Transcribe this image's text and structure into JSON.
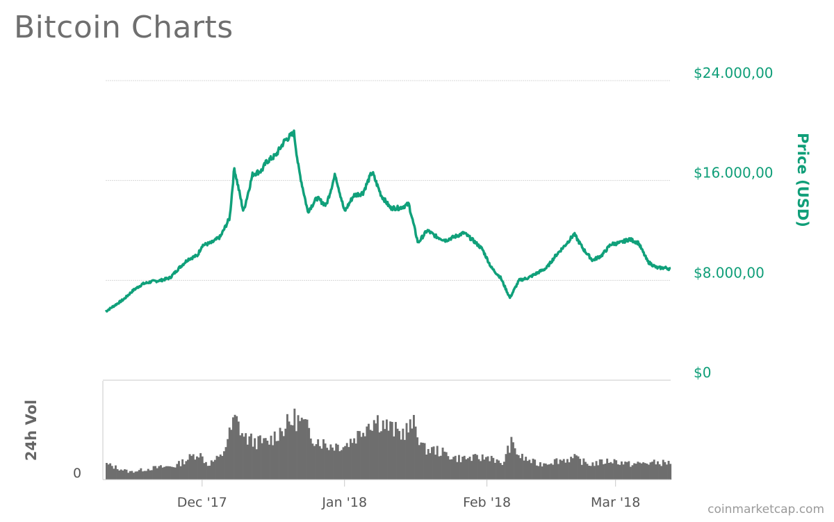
{
  "page": {
    "title": "Bitcoin Charts",
    "credit": "coinmarketcap.com"
  },
  "colors": {
    "price_line": "#10a07a",
    "price_axis": "#0f9e78",
    "volume_fill": "#6e6e6e",
    "grid": "#d8d8d8",
    "axis_text": "#555555"
  },
  "chart_data": {
    "type": "line",
    "title": "Bitcoin Charts",
    "price_axis": {
      "label": "Price (USD)",
      "ticks": [
        0,
        8000,
        16000,
        24000
      ],
      "tick_labels": [
        "$0",
        "$8.000,00",
        "$16.000,00",
        "$24.000,00"
      ],
      "ylim": [
        0,
        24000
      ]
    },
    "volume_axis": {
      "label": "24h Vol",
      "tick_labels": [
        "0"
      ]
    },
    "x_axis": {
      "tick_dates": [
        "2017-12-01",
        "2018-01-01",
        "2018-02-01",
        "2018-03-01"
      ],
      "tick_labels": [
        "Dec '17",
        "Jan '18",
        "Feb '18",
        "Mar '18"
      ],
      "xlim": [
        "2017-11-10",
        "2018-03-13"
      ]
    },
    "series": [
      {
        "name": "Price (USD)",
        "dates": [
          "2017-11-10",
          "2017-11-12",
          "2017-11-14",
          "2017-11-16",
          "2017-11-18",
          "2017-11-20",
          "2017-11-22",
          "2017-11-24",
          "2017-11-26",
          "2017-11-28",
          "2017-11-30",
          "2017-12-01",
          "2017-12-03",
          "2017-12-05",
          "2017-12-07",
          "2017-12-08",
          "2017-12-10",
          "2017-12-12",
          "2017-12-14",
          "2017-12-15",
          "2017-12-17",
          "2017-12-19",
          "2017-12-21",
          "2017-12-22",
          "2017-12-24",
          "2017-12-26",
          "2017-12-28",
          "2017-12-30",
          "2018-01-01",
          "2018-01-03",
          "2018-01-05",
          "2018-01-07",
          "2018-01-09",
          "2018-01-11",
          "2018-01-13",
          "2018-01-15",
          "2018-01-17",
          "2018-01-19",
          "2018-01-21",
          "2018-01-23",
          "2018-01-25",
          "2018-01-27",
          "2018-01-29",
          "2018-01-31",
          "2018-02-02",
          "2018-02-04",
          "2018-02-06",
          "2018-02-08",
          "2018-02-10",
          "2018-02-12",
          "2018-02-14",
          "2018-02-16",
          "2018-02-18",
          "2018-02-20",
          "2018-02-22",
          "2018-02-24",
          "2018-02-26",
          "2018-02-28",
          "2018-03-02",
          "2018-03-04",
          "2018-03-06",
          "2018-03-08",
          "2018-03-10",
          "2018-03-12",
          "2018-03-13"
        ],
        "values": [
          5500,
          6000,
          6500,
          7200,
          7700,
          7900,
          8000,
          8200,
          9000,
          9700,
          10000,
          10800,
          11000,
          11500,
          13000,
          17000,
          13500,
          16500,
          16800,
          17500,
          18000,
          19200,
          19800,
          17000,
          13500,
          14600,
          14000,
          16500,
          13500,
          14800,
          15000,
          16700,
          14800,
          13800,
          13800,
          14100,
          11000,
          12000,
          11500,
          11200,
          11500,
          11800,
          11200,
          10500,
          9000,
          8200,
          6600,
          8000,
          8200,
          8600,
          9000,
          10000,
          10800,
          11700,
          10500,
          9600,
          10000,
          10900,
          11000,
          11300,
          11000,
          9500,
          9000,
          9000,
          8900
        ]
      },
      {
        "name": "24h Vol",
        "dates": [
          "2017-11-10",
          "2017-11-15",
          "2017-11-20",
          "2017-11-25",
          "2017-11-30",
          "2017-12-02",
          "2017-12-05",
          "2017-12-08",
          "2017-12-10",
          "2017-12-12",
          "2017-12-15",
          "2017-12-18",
          "2017-12-21",
          "2017-12-23",
          "2017-12-25",
          "2017-12-28",
          "2018-01-01",
          "2018-01-04",
          "2018-01-06",
          "2018-01-08",
          "2018-01-10",
          "2018-01-13",
          "2018-01-16",
          "2018-01-18",
          "2018-01-21",
          "2018-01-25",
          "2018-01-30",
          "2018-02-02",
          "2018-02-04",
          "2018-02-06",
          "2018-02-08",
          "2018-02-12",
          "2018-02-16",
          "2018-02-20",
          "2018-02-23",
          "2018-02-28",
          "2018-03-04",
          "2018-03-08",
          "2018-03-13"
        ],
        "values": [
          20,
          10,
          15,
          18,
          35,
          20,
          30,
          80,
          55,
          50,
          48,
          65,
          80,
          72,
          55,
          45,
          45,
          60,
          75,
          78,
          70,
          60,
          72,
          40,
          38,
          28,
          28,
          30,
          18,
          48,
          30,
          20,
          25,
          28,
          20,
          25,
          20,
          22,
          22
        ]
      }
    ],
    "grid": true,
    "legend": "none"
  }
}
